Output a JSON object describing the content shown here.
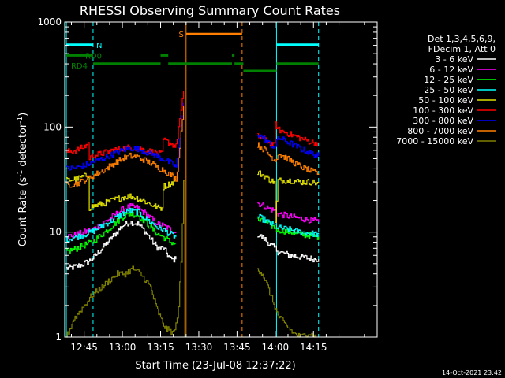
{
  "colors": {
    "background": "#000000",
    "axis": "#ffffff",
    "text": "#ffffff",
    "attenuator": "#00ffff",
    "decimation": "#008000",
    "saa": "#ff8000"
  },
  "chart_data": {
    "type": "line",
    "title": "RHESSI Observing Summary Count Rates",
    "xlabel": "Start Time (23-Jul-08 12:37:22)",
    "ylabel_parts": [
      "Count Rate (s",
      "-1",
      " detector",
      "-1",
      ")"
    ],
    "yscale": "log",
    "xlim_min": [
      37.37,
      160
    ],
    "ylim": [
      1,
      1000
    ],
    "xticks": [
      {
        "min": 45,
        "label": "12:45"
      },
      {
        "min": 60,
        "label": "13:00"
      },
      {
        "min": 75,
        "label": "13:15"
      },
      {
        "min": 90,
        "label": "13:30"
      },
      {
        "min": 105,
        "label": "13:45"
      },
      {
        "min": 120,
        "label": "14:00"
      },
      {
        "min": 135,
        "label": "14:15"
      }
    ],
    "yticks": [
      {
        "value": 1,
        "label": "1"
      },
      {
        "value": 10,
        "label": "10"
      },
      {
        "value": 100,
        "label": "100"
      },
      {
        "value": 1000,
        "label": "1000"
      }
    ],
    "legend": {
      "placement": "right",
      "header": [
        "Det 1,3,4,5,6,9,",
        "FDecim 1, Att 0"
      ]
    },
    "series": [
      {
        "name": "3 - 6 keV",
        "color": "#ffffff",
        "segments": [
          {
            "x": [
              38,
              42,
              45,
              48,
              52,
              56,
              60,
              63,
              66,
              69,
              72,
              74,
              76,
              79,
              81
            ],
            "y": [
              4.5,
              4.7,
              5,
              5.5,
              7,
              9,
              11.5,
              12.5,
              12,
              10,
              8,
              7,
              7,
              5.5,
              5.5
            ]
          },
          {
            "x": [
              113,
              116,
              118,
              120,
              121,
              126,
              130,
              134,
              137
            ],
            "y": [
              9.5,
              8.5,
              7.5,
              7,
              6.5,
              6,
              5.8,
              5.6,
              5.5
            ]
          }
        ]
      },
      {
        "name": "6 - 12 keV",
        "color": "#ff00ff",
        "segments": [
          {
            "x": [
              38,
              42,
              45,
              48,
              52,
              56,
              60,
              63,
              66,
              69,
              72,
              74,
              76,
              79,
              81
            ],
            "y": [
              9,
              9.5,
              10,
              10.5,
              12,
              14,
              16.5,
              17.5,
              17,
              15,
              13,
              12,
              11.5,
              10.5,
              10
            ]
          },
          {
            "x": [
              113,
              116,
              118,
              120,
              121,
              126,
              130,
              134,
              137
            ],
            "y": [
              19,
              17.5,
              16.5,
              16,
              15,
              14,
              13.5,
              13,
              12.5
            ]
          }
        ]
      },
      {
        "name": "12 - 25 keV",
        "color": "#00ff00",
        "segments": [
          {
            "x": [
              38,
              42,
              45,
              48,
              52,
              56,
              60,
              63,
              66,
              69,
              72,
              74,
              76,
              79,
              81
            ],
            "y": [
              6.5,
              7,
              7.5,
              8,
              9.5,
              11.5,
              14,
              15,
              14.5,
              12.5,
              10.5,
              9.5,
              9,
              8,
              7.8
            ]
          },
          {
            "x": [
              113,
              116,
              118,
              120,
              121,
              126,
              130,
              134,
              137
            ],
            "y": [
              13,
              12.5,
              11.5,
              11,
              10.5,
              10,
              9.5,
              9.2,
              9
            ]
          }
        ]
      },
      {
        "name": "25 - 50 keV",
        "color": "#00ffff",
        "segments": [
          {
            "x": [
              38,
              42,
              45,
              48,
              52,
              56,
              60,
              63,
              66,
              69,
              72,
              74,
              76,
              79,
              81
            ],
            "y": [
              8.5,
              9,
              9.5,
              10,
              11.5,
              13,
              15,
              16,
              15.5,
              13.5,
              12,
              11,
              10.5,
              9.5,
              9
            ]
          },
          {
            "x": [
              113,
              116,
              118,
              120,
              121,
              126,
              130,
              134,
              137
            ],
            "y": [
              14,
              13,
              12,
              11.5,
              11,
              10.5,
              10,
              9.7,
              9.5
            ]
          }
        ]
      },
      {
        "name": "50 - 100 keV",
        "color": "#e0e000",
        "segments": [
          {
            "x": [
              38,
              42,
              45,
              46.5,
              47,
              48,
              52,
              56,
              60,
              63,
              66,
              69,
              72,
              74,
              75.5,
              76,
              79,
              81
            ],
            "y": [
              31,
              32,
              34,
              35,
              17,
              17.5,
              18.5,
              20,
              21.5,
              22,
              21,
              19.5,
              18,
              17,
              17,
              27,
              29,
              31
            ]
          },
          {
            "x": [
              113,
              116,
              118,
              119.5,
              120,
              121,
              126,
              130,
              134,
              137
            ],
            "y": [
              37,
              34,
              31,
              30,
              12,
              31,
              31,
              30,
              30,
              29
            ]
          }
        ]
      },
      {
        "name": "100 - 300 keV",
        "color": "#ff0000",
        "segments": [
          {
            "x": [
              38,
              42,
              45,
              46.5,
              47,
              48,
              52,
              56,
              60,
              63,
              66,
              69,
              72,
              74,
              75.5,
              76,
              79,
              81,
              82,
              83,
              84
            ],
            "y": [
              58,
              60,
              65,
              70,
              51,
              53,
              56,
              60,
              63,
              64,
              63,
              60,
              58,
              56,
              55,
              75,
              70,
              65,
              100,
              140,
              220
            ]
          },
          {
            "x": [
              113,
              116,
              118,
              119.5,
              120,
              121,
              126,
              130,
              134,
              137
            ],
            "y": [
              82,
              76,
              70,
              66,
              110,
              95,
              85,
              78,
              72,
              70
            ]
          }
        ]
      },
      {
        "name": "300 - 800 keV",
        "color": "#0000ff",
        "segments": [
          {
            "x": [
              38,
              42,
              45,
              48,
              52,
              56,
              60,
              63,
              66,
              69,
              72,
              74,
              76,
              79,
              81,
              82,
              83,
              84
            ],
            "y": [
              40,
              41,
              43,
              46,
              50,
              55,
              60,
              63,
              62,
              58,
              55,
              52,
              50,
              45,
              42,
              60,
              100,
              170
            ]
          },
          {
            "x": [
              113,
              116,
              118,
              120,
              121,
              126,
              130,
              134,
              137
            ],
            "y": [
              86,
              76,
              68,
              64,
              80,
              70,
              62,
              56,
              53
            ]
          }
        ]
      },
      {
        "name": "800 - 7000 keV",
        "color": "#ff8000",
        "segments": [
          {
            "x": [
              38,
              42,
              45,
              48,
              52,
              56,
              60,
              63,
              66,
              69,
              72,
              74,
              76,
              79,
              81,
              82,
              83,
              84
            ],
            "y": [
              28,
              29,
              31,
              34,
              38,
              44,
              50,
              53,
              52,
              48,
              44,
              41,
              39,
              35,
              32,
              50,
              90,
              160
            ]
          },
          {
            "x": [
              113,
              116,
              118,
              120,
              121,
              126,
              130,
              134,
              137
            ],
            "y": [
              68,
              60,
              53,
              48,
              56,
              48,
              42,
              38,
              36
            ]
          }
        ]
      },
      {
        "name": "7000 - 15000 keV",
        "color": "#808000",
        "segments": [
          {
            "x": [
              38,
              41,
              45,
              48,
              52,
              55,
              58,
              61,
              64,
              67,
              69,
              71,
              73,
              75,
              77,
              80,
              81,
              82,
              83,
              84,
              84.5
            ],
            "y": [
              1,
              1.5,
              2,
              2.5,
              3,
              3.5,
              4,
              4,
              4.5,
              4,
              3.5,
              3,
              2,
              1.5,
              1.2,
              1.1,
              1.3,
              2,
              5,
              30,
              1
            ]
          },
          {
            "x": [
              113,
              115,
              117,
              119,
              121,
              124,
              127,
              130,
              133,
              136
            ],
            "y": [
              4.5,
              4,
              3,
              2.2,
              1.6,
              1.3,
              1.1,
              1,
              1.1,
              1
            ]
          }
        ]
      }
    ],
    "state_bars": [
      {
        "label": "N",
        "color": "#00ffff",
        "y_frac": 0.928,
        "segments": [
          [
            38,
            48.5
          ],
          [
            120.5,
            137
          ]
        ]
      },
      {
        "label": "RD0",
        "color": "#008000",
        "y_frac": 0.894,
        "segments": [
          [
            38,
            48.5
          ]
        ]
      },
      {
        "label": "RD4",
        "color": "#008000",
        "y_frac": 0.868,
        "segments": [
          [
            48.5,
            75
          ],
          [
            78,
            103
          ],
          [
            104,
            107.5
          ],
          [
            120.5,
            137
          ]
        ]
      },
      {
        "label": "",
        "color": "#008000",
        "y_frac": 0.894,
        "segments": [
          [
            75,
            78
          ],
          [
            103,
            104
          ]
        ]
      },
      {
        "label": "",
        "color": "#008000",
        "y_frac": 0.845,
        "segments": [
          [
            107.5,
            120.5
          ]
        ]
      },
      {
        "label": "S",
        "color": "#ff8000",
        "y_frac": 0.962,
        "segments": [
          [
            85,
            107
          ]
        ]
      }
    ],
    "vlines": [
      {
        "min": 38,
        "color": "#00ffff",
        "style": "solid"
      },
      {
        "min": 48.5,
        "color": "#00ffff",
        "style": "dashed"
      },
      {
        "min": 85,
        "color": "#ff8000",
        "style": "solid"
      },
      {
        "min": 107,
        "color": "#ff8000",
        "style": "dashed"
      },
      {
        "min": 120.5,
        "color": "#00ffff",
        "style": "solid"
      },
      {
        "min": 137,
        "color": "#00ffff",
        "style": "dashed"
      }
    ],
    "footer": "14-Oct-2021 23:42"
  }
}
